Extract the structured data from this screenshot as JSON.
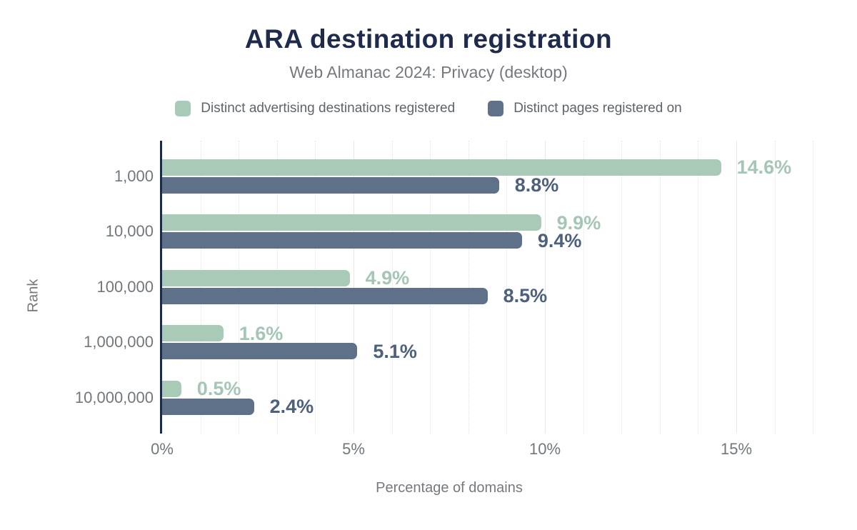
{
  "chart_data": {
    "type": "bar",
    "orientation": "horizontal",
    "title": "ARA destination registration",
    "subtitle": "Web Almanac 2024: Privacy (desktop)",
    "xlabel": "Percentage of domains",
    "ylabel": "Rank",
    "categories": [
      "1,000",
      "10,000",
      "100,000",
      "1,000,000",
      "10,000,000"
    ],
    "series": [
      {
        "name": "Distinct advertising destinations registered",
        "color": "#a9cab7",
        "label_color": "#a5c6b4",
        "values": [
          14.6,
          9.9,
          4.9,
          1.6,
          0.5
        ]
      },
      {
        "name": "Distinct pages registered on",
        "color": "#5f7089",
        "label_color": "#4d617c",
        "values": [
          8.8,
          9.4,
          8.5,
          5.1,
          2.4
        ]
      }
    ],
    "value_suffix": "%",
    "x_ticks": [
      {
        "label": "0%",
        "value": 0
      },
      {
        "label": "5%",
        "value": 5
      },
      {
        "label": "10%",
        "value": 10
      },
      {
        "label": "15%",
        "value": 15
      }
    ],
    "xlim": [
      0,
      17.35
    ],
    "grid": true,
    "grid_step": 1,
    "legend_position": "top",
    "colors": {
      "title": "#1e2b4c",
      "axis_line": "#1b2a45",
      "text": "#72777d",
      "grid": "#dfe3e7"
    }
  }
}
